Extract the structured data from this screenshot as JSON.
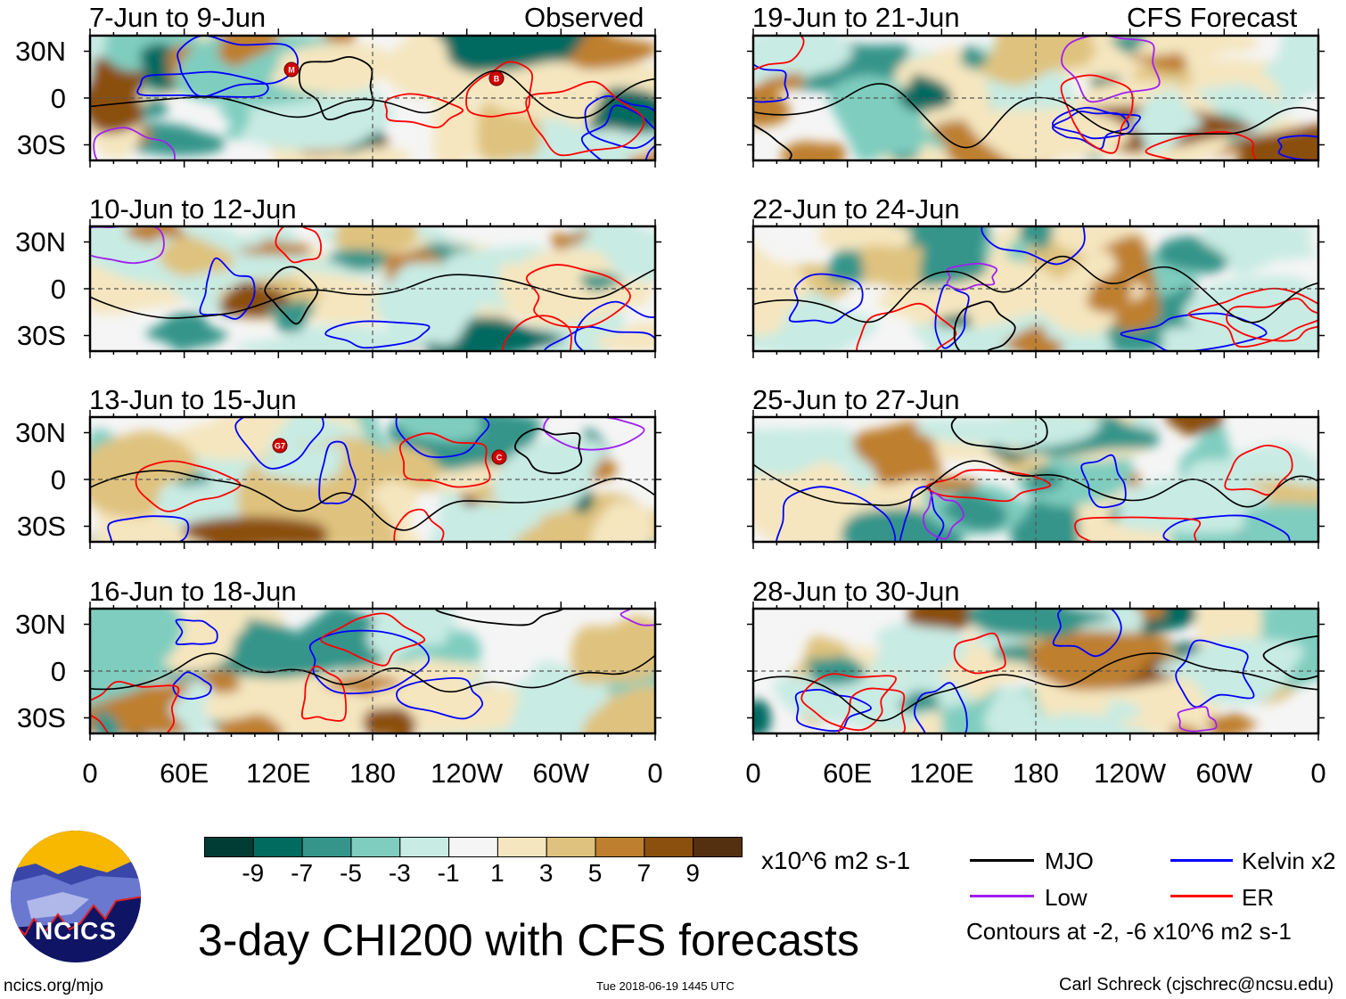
{
  "figure": {
    "title": "3-day CHI200 with CFS forecasts",
    "website": "ncics.org/mjo",
    "timestamp": "Tue 2018-06-19 1445 UTC",
    "author": "Carl Schreck (cjschrec@ncsu.edu)",
    "logo_text": "NCICS"
  },
  "columns": {
    "observed": "Observed",
    "forecast": "CFS Forecast"
  },
  "lat_labels": [
    "30N",
    "0",
    "30S"
  ],
  "lon_labels": [
    "0",
    "60E",
    "120E",
    "180",
    "120W",
    "60W",
    "0"
  ],
  "panels": [
    {
      "title": "7-Jun to 9-Jun",
      "type": "observed",
      "storms": [
        "M",
        "B"
      ]
    },
    {
      "title": "10-Jun to 12-Jun",
      "type": "observed",
      "storms": []
    },
    {
      "title": "13-Jun to 15-Jun",
      "type": "observed",
      "storms": [
        "G",
        "7",
        "C"
      ]
    },
    {
      "title": "16-Jun to 18-Jun",
      "type": "observed",
      "storms": []
    },
    {
      "title": "19-Jun to 21-Jun",
      "type": "forecast",
      "storms": []
    },
    {
      "title": "22-Jun to 24-Jun",
      "type": "forecast",
      "storms": []
    },
    {
      "title": "25-Jun to 27-Jun",
      "type": "forecast",
      "storms": []
    },
    {
      "title": "28-Jun to 30-Jun",
      "type": "forecast",
      "storms": []
    }
  ],
  "colorbar": {
    "unit": "x10^6 m2 s-1",
    "labels": [
      "-9",
      "-7",
      "-5",
      "-3",
      "-1",
      "1",
      "3",
      "5",
      "7",
      "9"
    ],
    "colors": [
      "#023d35",
      "#016b60",
      "#35958a",
      "#7fcdbf",
      "#c8ebe3",
      "#f5f5f5",
      "#f5e6bf",
      "#dfc27e",
      "#be7f2e",
      "#8b500e",
      "#553010"
    ]
  },
  "legend": {
    "items": [
      {
        "label": "MJO",
        "color": "#000000"
      },
      {
        "label": "Kelvin x2",
        "color": "#0000ff"
      },
      {
        "label": "Low",
        "color": "#a020f0"
      },
      {
        "label": "ER",
        "color": "#ff0000"
      }
    ],
    "note": "Contours at -2, -6 x10^6 m2 s-1"
  }
}
